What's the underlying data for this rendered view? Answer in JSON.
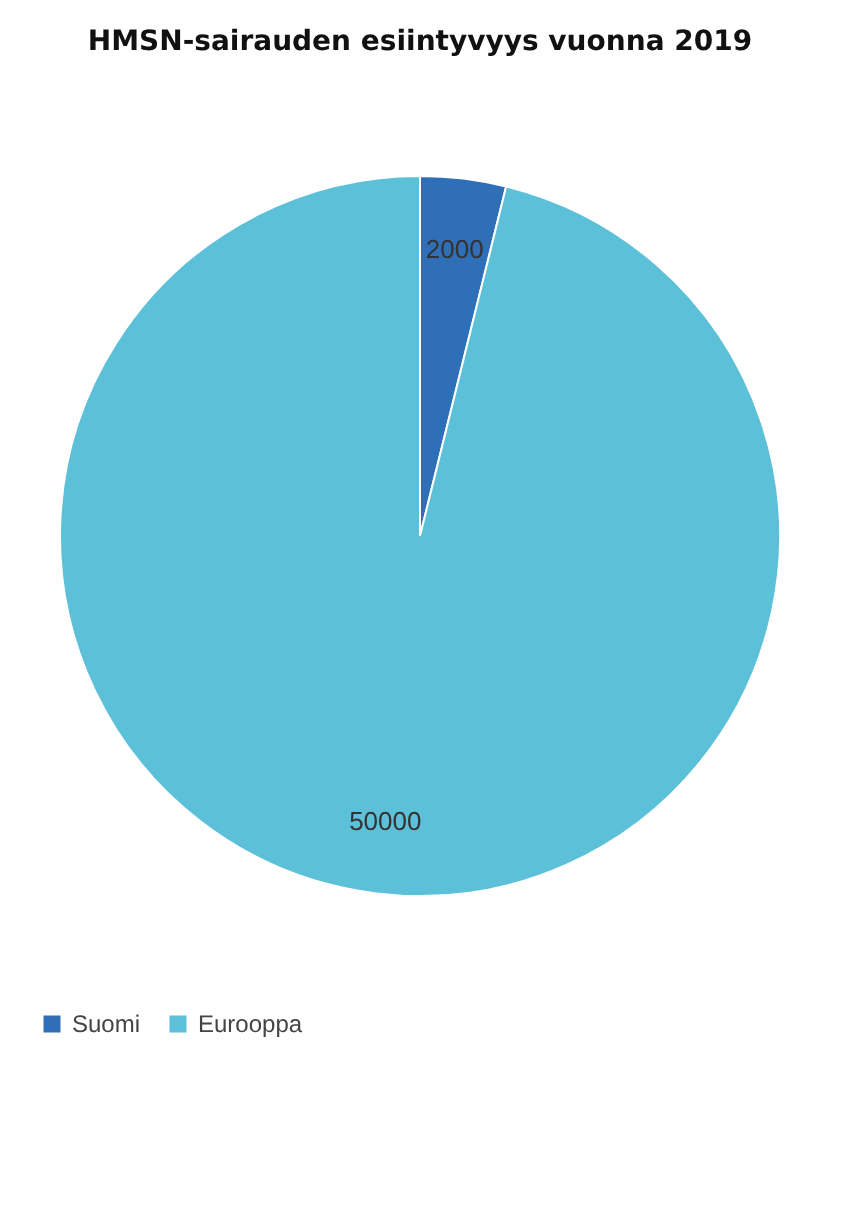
{
  "chart_data": {
    "type": "pie",
    "title": "HMSN-sairauden esiintyvyys vuonna 2019",
    "categories": [
      "Suomi",
      "Eurooppa"
    ],
    "values": [
      2000,
      50000
    ],
    "colors": [
      "#2f6fb8",
      "#5bc0d8"
    ],
    "data_labels": true,
    "legend": "bottom"
  }
}
